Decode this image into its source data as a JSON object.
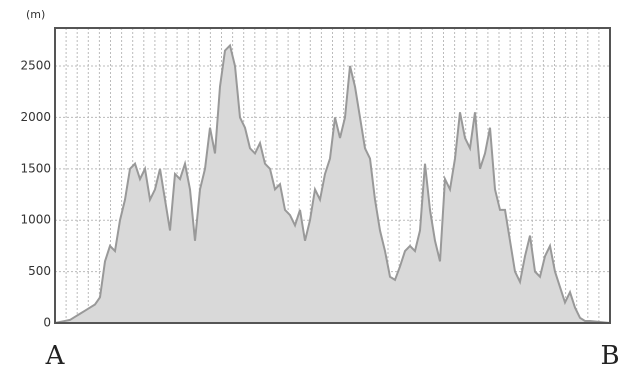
{
  "chart_data": {
    "type": "area",
    "y_unit": "(m)",
    "start_label": "A",
    "end_label": "B",
    "values": [
      0,
      10,
      20,
      30,
      60,
      90,
      120,
      150,
      180,
      250,
      600,
      750,
      700,
      1000,
      1200,
      1500,
      1550,
      1400,
      1500,
      1200,
      1300,
      1500,
      1200,
      900,
      1450,
      1400,
      1550,
      1300,
      800,
      1300,
      1500,
      1900,
      1650,
      2300,
      2650,
      2700,
      2500,
      2000,
      1900,
      1700,
      1650,
      1750,
      1550,
      1500,
      1300,
      1350,
      1100,
      1050,
      950,
      1100,
      800,
      1000,
      1300,
      1200,
      1450,
      1600,
      2000,
      1800,
      2000,
      2500,
      2300,
      2000,
      1700,
      1600,
      1200,
      900,
      700,
      450,
      420,
      550,
      700,
      750,
      700,
      900,
      1550,
      1100,
      800,
      600,
      1400,
      1300,
      1600,
      2050,
      1800,
      1700,
      2050,
      1500,
      1650,
      1900,
      1300,
      1100,
      1100,
      800,
      500,
      400,
      650,
      850,
      500,
      450,
      650,
      750,
      500,
      350,
      200,
      300,
      150,
      50,
      20,
      20,
      15,
      10,
      5,
      0
    ],
    "color": "#999999",
    "fill": "#d9d9d9",
    "ylim": [
      0,
      2870
    ],
    "yticks": [
      0,
      500,
      1000,
      1500,
      2000,
      2500
    ],
    "grid": true
  }
}
